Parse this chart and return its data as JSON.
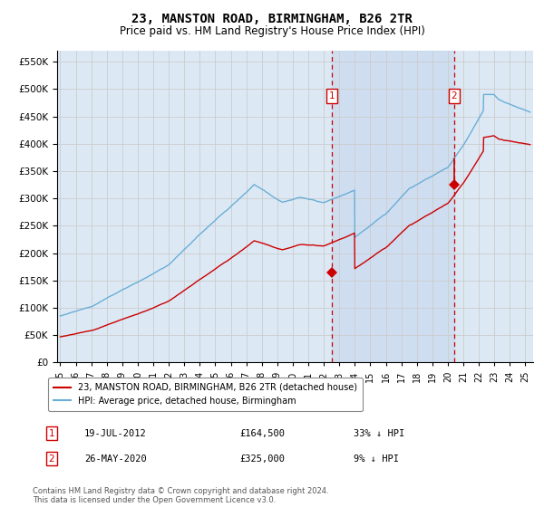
{
  "title": "23, MANSTON ROAD, BIRMINGHAM, B26 2TR",
  "subtitle": "Price paid vs. HM Land Registry's House Price Index (HPI)",
  "title_fontsize": 10,
  "subtitle_fontsize": 8.5,
  "ylabel_values": [
    0,
    50000,
    100000,
    150000,
    200000,
    250000,
    300000,
    350000,
    400000,
    450000,
    500000,
    550000
  ],
  "ylim": [
    0,
    570000
  ],
  "xlim_start": 1994.8,
  "xlim_end": 2025.5,
  "grid_color": "#cccccc",
  "bg_color": "#dce9f5",
  "hpi_color": "#6aaed6",
  "price_color": "#cc0000",
  "annotation_box_color": "#cc0000",
  "dashed_line_color": "#cc0000",
  "purchase1_date": 2012.54,
  "purchase1_price": 164500,
  "purchase2_date": 2020.4,
  "purchase2_price": 325000,
  "legend_label1": "23, MANSTON ROAD, BIRMINGHAM, B26 2TR (detached house)",
  "legend_label2": "HPI: Average price, detached house, Birmingham",
  "note1_date": "19-JUL-2012",
  "note1_price": "£164,500",
  "note1_pct": "33% ↓ HPI",
  "note2_date": "26-MAY-2020",
  "note2_price": "£325,000",
  "note2_pct": "9% ↓ HPI",
  "footer": "Contains HM Land Registry data © Crown copyright and database right 2024.\nThis data is licensed under the Open Government Licence v3.0."
}
